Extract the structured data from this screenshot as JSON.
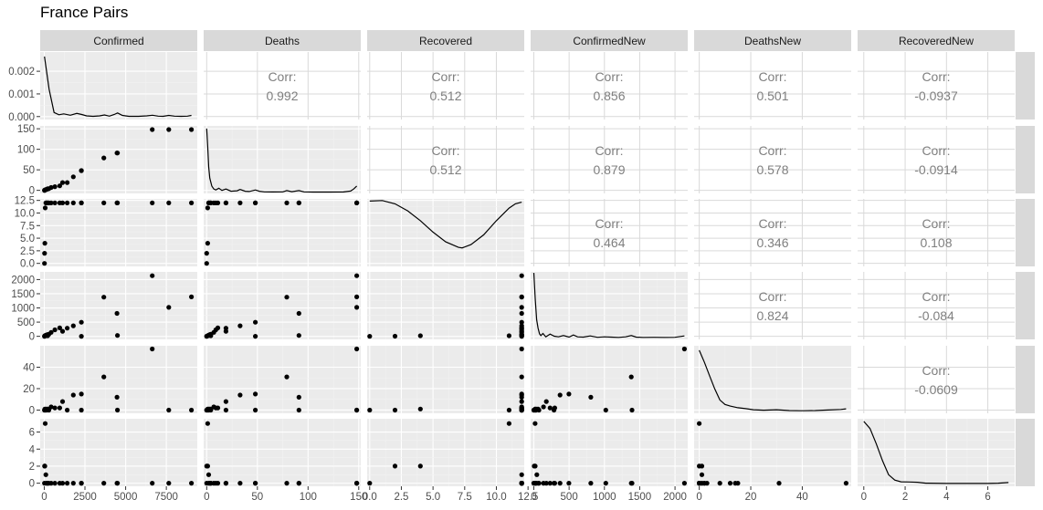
{
  "title": "France Pairs",
  "chart_data": {
    "type": "scatter",
    "variables": [
      "Confirmed",
      "Deaths",
      "Recovered",
      "ConfirmedNew",
      "DeathsNew",
      "RecoveredNew"
    ],
    "corr_label": "Corr:",
    "correlations": [
      {
        "row": 0,
        "col": 1,
        "text": "0.992"
      },
      {
        "row": 0,
        "col": 2,
        "text": "0.512"
      },
      {
        "row": 0,
        "col": 3,
        "text": "0.856"
      },
      {
        "row": 0,
        "col": 4,
        "text": "0.501"
      },
      {
        "row": 0,
        "col": 5,
        "text": "-0.0937"
      },
      {
        "row": 1,
        "col": 2,
        "text": "0.512"
      },
      {
        "row": 1,
        "col": 3,
        "text": "0.879"
      },
      {
        "row": 1,
        "col": 4,
        "text": "0.578"
      },
      {
        "row": 1,
        "col": 5,
        "text": "-0.0914"
      },
      {
        "row": 2,
        "col": 3,
        "text": "0.464"
      },
      {
        "row": 2,
        "col": 4,
        "text": "0.346"
      },
      {
        "row": 2,
        "col": 5,
        "text": "0.108"
      },
      {
        "row": 3,
        "col": 4,
        "text": "0.824"
      },
      {
        "row": 3,
        "col": 5,
        "text": "-0.084"
      },
      {
        "row": 4,
        "col": 5,
        "text": "-0.0609"
      }
    ],
    "axes": {
      "x": [
        {
          "range": [
            -250,
            9400
          ],
          "ticks": [
            0,
            2500,
            5000,
            7500
          ],
          "labels": [
            "0",
            "2500",
            "5000",
            "7500"
          ]
        },
        {
          "range": [
            -3,
            152
          ],
          "ticks": [
            0,
            50,
            100,
            150
          ],
          "labels": [
            "0",
            "50",
            "100",
            "150"
          ]
        },
        {
          "range": [
            -0.2,
            12.2
          ],
          "ticks": [
            0,
            2.5,
            5,
            7.5,
            10,
            12.5
          ],
          "labels": [
            "0.0",
            "2.5",
            "5.0",
            "7.5",
            "10.0",
            "12.5"
          ]
        },
        {
          "range": [
            -45,
            2180
          ],
          "ticks": [
            0,
            500,
            1000,
            1500,
            2000
          ],
          "labels": [
            "0",
            "500",
            "1000",
            "1500",
            "2000"
          ]
        },
        {
          "range": [
            -2,
            59
          ],
          "ticks": [
            0,
            20,
            40
          ],
          "labels": [
            "0",
            "20",
            "40"
          ]
        },
        {
          "range": [
            -0.3,
            7.3
          ],
          "ticks": [
            0,
            2,
            4,
            6
          ],
          "labels": [
            "0",
            "2",
            "4",
            "6"
          ]
        }
      ],
      "y": [
        {
          "range": [
            -0.00013,
            0.00285
          ],
          "ticks": [
            0,
            0.001,
            0.002
          ],
          "labels": [
            "0.000",
            "0.001",
            "0.002"
          ]
        },
        {
          "range": [
            -7.5,
            157
          ],
          "ticks": [
            0,
            50,
            100,
            150
          ],
          "labels": [
            "0",
            "50",
            "100",
            "150"
          ]
        },
        {
          "range": [
            -0.6,
            12.8
          ],
          "ticks": [
            0,
            2.5,
            5,
            7.5,
            10,
            12.5
          ],
          "labels": [
            "0.0",
            "2.5",
            "5.0",
            "7.5",
            "10.0",
            "12.5"
          ]
        },
        {
          "range": [
            -108,
            2270
          ],
          "ticks": [
            0,
            500,
            1000,
            1500,
            2000
          ],
          "labels": [
            "0",
            "500",
            "1000",
            "1500",
            "2000"
          ]
        },
        {
          "range": [
            -3,
            60
          ],
          "ticks": [
            0,
            20,
            40
          ],
          "labels": [
            "0",
            "20",
            "40"
          ]
        },
        {
          "range": [
            -0.36,
            7.56
          ],
          "ticks": [
            0,
            2,
            4,
            6
          ],
          "labels": [
            "0",
            "2",
            "4",
            "6"
          ]
        }
      ]
    },
    "observations": [
      {
        "Confirmed": 12,
        "Deaths": 0,
        "Recovered": 0,
        "ConfirmedNew": 0,
        "DeathsNew": 0,
        "RecoveredNew": 0
      },
      {
        "Confirmed": 18,
        "Deaths": 0,
        "Recovered": 2,
        "ConfirmedNew": 6,
        "DeathsNew": 0,
        "RecoveredNew": 2
      },
      {
        "Confirmed": 38,
        "Deaths": 1,
        "Recovered": 4,
        "ConfirmedNew": 20,
        "DeathsNew": 1,
        "RecoveredNew": 2
      },
      {
        "Confirmed": 57,
        "Deaths": 1,
        "Recovered": 11,
        "ConfirmedNew": 19,
        "DeathsNew": 0,
        "RecoveredNew": 7
      },
      {
        "Confirmed": 100,
        "Deaths": 2,
        "Recovered": 12,
        "ConfirmedNew": 43,
        "DeathsNew": 1,
        "RecoveredNew": 1
      },
      {
        "Confirmed": 130,
        "Deaths": 2,
        "Recovered": 12,
        "ConfirmedNew": 30,
        "DeathsNew": 0,
        "RecoveredNew": 0
      },
      {
        "Confirmed": 191,
        "Deaths": 3,
        "Recovered": 12,
        "ConfirmedNew": 61,
        "DeathsNew": 1,
        "RecoveredNew": 0
      },
      {
        "Confirmed": 212,
        "Deaths": 4,
        "Recovered": 12,
        "ConfirmedNew": 21,
        "DeathsNew": 1,
        "RecoveredNew": 0
      },
      {
        "Confirmed": 285,
        "Deaths": 4,
        "Recovered": 12,
        "ConfirmedNew": 73,
        "DeathsNew": 0,
        "RecoveredNew": 0
      },
      {
        "Confirmed": 423,
        "Deaths": 7,
        "Recovered": 12,
        "ConfirmedNew": 138,
        "DeathsNew": 3,
        "RecoveredNew": 0
      },
      {
        "Confirmed": 653,
        "Deaths": 9,
        "Recovered": 12,
        "ConfirmedNew": 230,
        "DeathsNew": 2,
        "RecoveredNew": 0
      },
      {
        "Confirmed": 949,
        "Deaths": 11,
        "Recovered": 12,
        "ConfirmedNew": 296,
        "DeathsNew": 2,
        "RecoveredNew": 0
      },
      {
        "Confirmed": 1126,
        "Deaths": 19,
        "Recovered": 12,
        "ConfirmedNew": 177,
        "DeathsNew": 8,
        "RecoveredNew": 0
      },
      {
        "Confirmed": 1412,
        "Deaths": 19,
        "Recovered": 12,
        "ConfirmedNew": 286,
        "DeathsNew": 0,
        "RecoveredNew": 0
      },
      {
        "Confirmed": 1784,
        "Deaths": 33,
        "Recovered": 12,
        "ConfirmedNew": 372,
        "DeathsNew": 14,
        "RecoveredNew": 0
      },
      {
        "Confirmed": 2281,
        "Deaths": 48,
        "Recovered": 12,
        "ConfirmedNew": 497,
        "DeathsNew": 15,
        "RecoveredNew": 0
      },
      {
        "Confirmed": 2281,
        "Deaths": 48,
        "Recovered": 12,
        "ConfirmedNew": 0,
        "DeathsNew": 0,
        "RecoveredNew": 0
      },
      {
        "Confirmed": 3661,
        "Deaths": 79,
        "Recovered": 12,
        "ConfirmedNew": 1380,
        "DeathsNew": 31,
        "RecoveredNew": 0
      },
      {
        "Confirmed": 4469,
        "Deaths": 91,
        "Recovered": 12,
        "ConfirmedNew": 808,
        "DeathsNew": 12,
        "RecoveredNew": 0
      },
      {
        "Confirmed": 4499,
        "Deaths": 91,
        "Recovered": 12,
        "ConfirmedNew": 30,
        "DeathsNew": 0,
        "RecoveredNew": 0
      },
      {
        "Confirmed": 6633,
        "Deaths": 148,
        "Recovered": 12,
        "ConfirmedNew": 2134,
        "DeathsNew": 57,
        "RecoveredNew": 0
      },
      {
        "Confirmed": 7652,
        "Deaths": 148,
        "Recovered": 12,
        "ConfirmedNew": 1019,
        "DeathsNew": 0,
        "RecoveredNew": 0
      },
      {
        "Confirmed": 9043,
        "Deaths": 148,
        "Recovered": 12,
        "ConfirmedNew": 1391,
        "DeathsNew": 0,
        "RecoveredNew": 0
      }
    ],
    "density_curves": [
      {
        "variable": "Confirmed",
        "x": [
          12,
          300,
          600,
          900,
          1200,
          1600,
          2000,
          2300,
          2600,
          3000,
          3400,
          3700,
          4000,
          4300,
          4500,
          4800,
          5200,
          5800,
          6300,
          6650,
          7000,
          7300,
          7650,
          8000,
          8400,
          8800,
          9043
        ],
        "y": [
          0.00265,
          0.0012,
          0.00018,
          8e-05,
          0.00012,
          6e-05,
          0.00014,
          9e-05,
          3e-05,
          1e-05,
          3e-05,
          7e-05,
          2e-05,
          9e-05,
          0.00016,
          5e-05,
          1e-05,
          1e-05,
          3e-05,
          6e-05,
          2e-05,
          1e-05,
          5e-05,
          2e-05,
          1e-05,
          2e-05,
          5e-05
        ]
      },
      {
        "variable": "Deaths",
        "x": [
          0,
          1,
          2,
          3,
          5,
          7,
          9,
          12,
          15,
          19,
          24,
          30,
          33,
          38,
          42,
          48,
          52,
          57,
          65,
          75,
          79,
          84,
          91,
          96,
          105,
          120,
          135,
          142,
          145,
          148
        ],
        "y": [
          146,
          105,
          58,
          32,
          14,
          7,
          5,
          9,
          4,
          7,
          2,
          3,
          6,
          2,
          1.5,
          5,
          2,
          0.5,
          0.3,
          0.6,
          3.5,
          1,
          3.5,
          0.5,
          0.2,
          0.2,
          0.4,
          2.5,
          7,
          14
        ]
      },
      {
        "variable": "Recovered",
        "x": [
          0,
          1,
          2,
          3,
          4,
          5,
          6,
          7,
          7.3,
          8,
          9,
          10,
          11,
          11.5,
          12
        ],
        "y": [
          11.8,
          11.9,
          11.3,
          10.0,
          8.2,
          6.1,
          4.3,
          3.3,
          3.2,
          3.8,
          5.6,
          8.2,
          10.5,
          11.3,
          11.6
        ]
      },
      {
        "variable": "ConfirmedNew",
        "x": [
          0,
          20,
          40,
          60,
          80,
          100,
          130,
          170,
          230,
          290,
          350,
          420,
          500,
          560,
          620,
          700,
          800,
          900,
          1000,
          1100,
          1200,
          1300,
          1380,
          1450,
          1550,
          1700,
          1850,
          2000,
          2134
        ],
        "y": [
          2150,
          1300,
          600,
          330,
          140,
          80,
          150,
          40,
          130,
          60,
          40,
          80,
          30,
          100,
          40,
          30,
          70,
          25,
          40,
          30,
          20,
          40,
          80,
          30,
          20,
          25,
          20,
          25,
          70
        ]
      },
      {
        "variable": "DeathsNew",
        "x": [
          0,
          2,
          4,
          6,
          8,
          10,
          12,
          15,
          18,
          21,
          25,
          30,
          35,
          40,
          45,
          50,
          55,
          57
        ],
        "y": [
          55,
          44,
          32,
          20,
          10,
          6,
          4.5,
          3,
          2.2,
          1.2,
          0.8,
          1.2,
          0.5,
          0.3,
          0.5,
          1,
          1.5,
          2
        ]
      },
      {
        "variable": "RecoveredNew",
        "x": [
          0,
          0.3,
          0.6,
          0.9,
          1.2,
          1.5,
          1.8,
          2.2,
          2.6,
          3.0,
          4.0,
          5.0,
          6.0,
          6.5,
          7.0
        ],
        "y": [
          7.0,
          6.2,
          4.5,
          2.6,
          1.0,
          0.4,
          0.2,
          0.18,
          0.15,
          0.05,
          0.02,
          0.02,
          0.02,
          0.05,
          0.12
        ]
      }
    ]
  },
  "colors": {
    "panel_bg": "#ebebeb",
    "grid_major": "#ffffff",
    "grid_minor": "#f2f2f2",
    "blank_grid": "#d9d9d9",
    "strip_bg": "#d9d9d9",
    "point": "#000000",
    "corr_text": "#7f7f7f"
  }
}
